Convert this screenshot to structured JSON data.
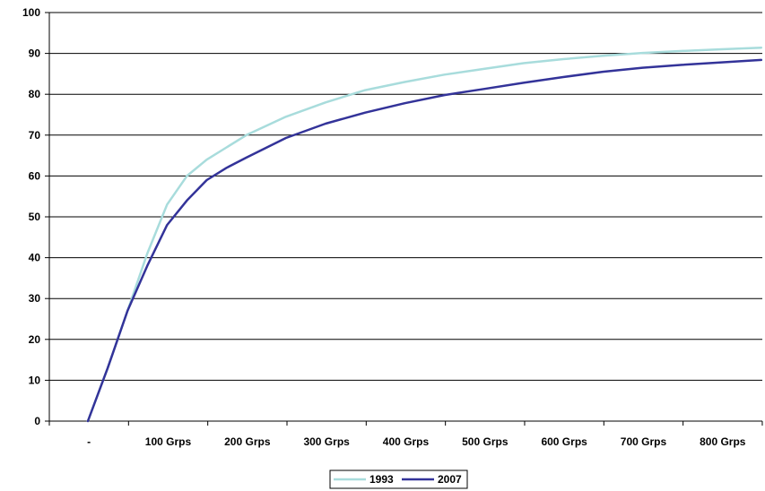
{
  "chart_data": {
    "type": "line",
    "title": "",
    "xlabel": "",
    "ylabel": "",
    "categories": [
      "-",
      "100 Grps",
      "200 Grps",
      "300 Grps",
      "400 Grps",
      "500 Grps",
      "600 Grps",
      "700 Grps",
      "800 Grps"
    ],
    "x_range": [
      0,
      850
    ],
    "ylim": [
      0,
      100
    ],
    "y_ticks": [
      0,
      10,
      20,
      30,
      40,
      50,
      60,
      70,
      80,
      90,
      100
    ],
    "grid": true,
    "legend_position": "bottom",
    "series": [
      {
        "name": "1993",
        "color": "#a8dcdc",
        "x": [
          0,
          25,
          50,
          75,
          100,
          125,
          150,
          175,
          200,
          250,
          300,
          350,
          400,
          450,
          500,
          550,
          600,
          650,
          700,
          750,
          800,
          850
        ],
        "values": [
          0,
          13,
          27,
          41,
          53,
          60,
          64,
          67,
          70,
          74.5,
          78,
          81,
          83,
          84.8,
          86.2,
          87.6,
          88.6,
          89.4,
          90.1,
          90.6,
          91.0,
          91.4
        ]
      },
      {
        "name": "2007",
        "color": "#333399",
        "x": [
          0,
          25,
          50,
          75,
          100,
          125,
          150,
          175,
          200,
          250,
          300,
          350,
          400,
          450,
          500,
          550,
          600,
          650,
          700,
          750,
          800,
          850
        ],
        "values": [
          0,
          13,
          27,
          38,
          48,
          54,
          59,
          62,
          64.5,
          69.3,
          72.8,
          75.5,
          77.8,
          79.8,
          81.3,
          82.8,
          84.2,
          85.5,
          86.5,
          87.2,
          87.8,
          88.4
        ]
      }
    ]
  }
}
